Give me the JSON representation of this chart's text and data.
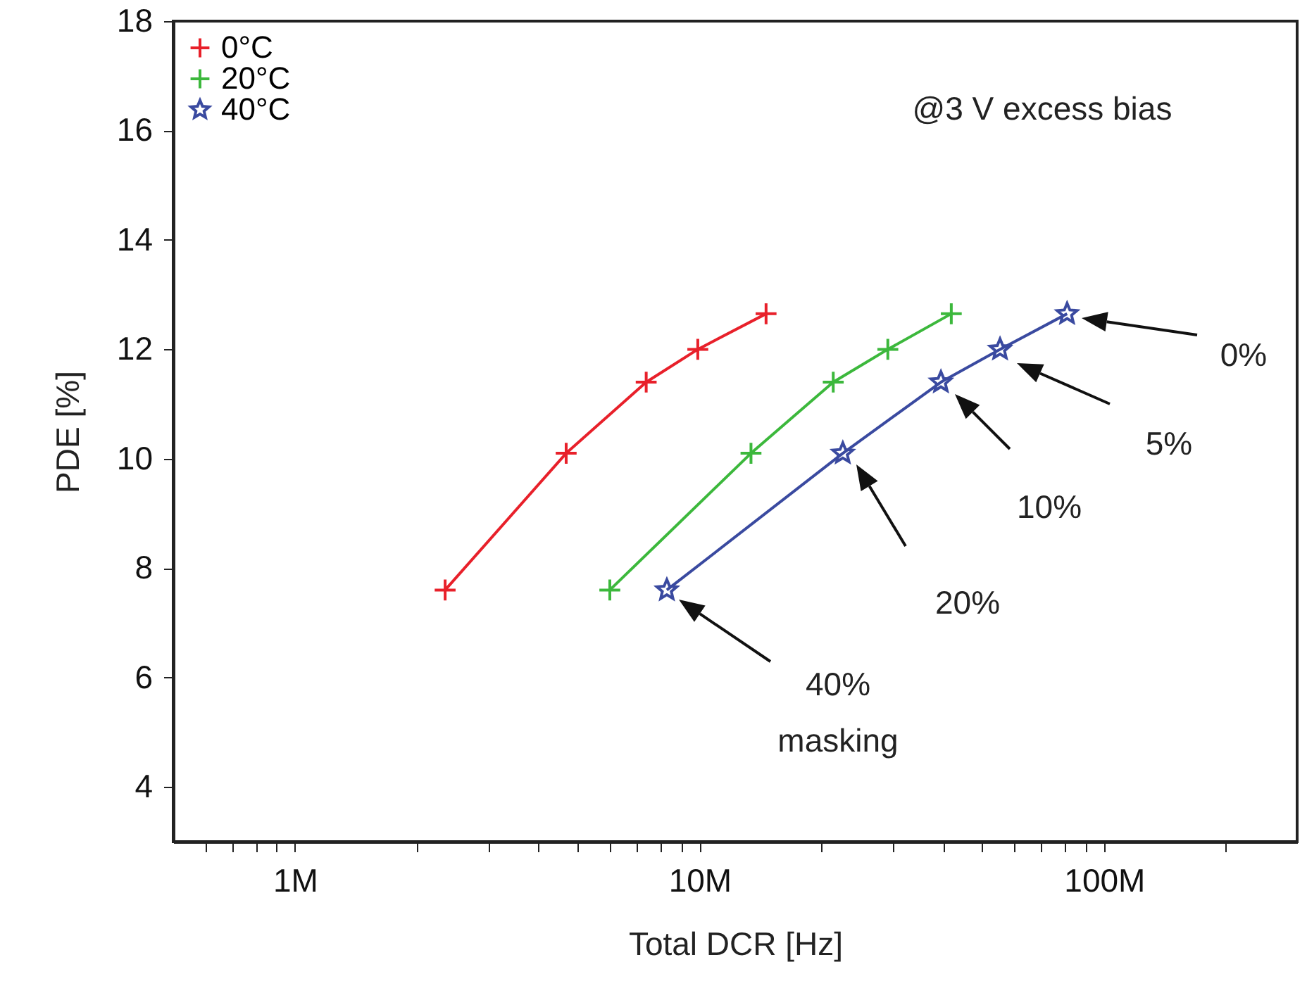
{
  "chart_data": {
    "type": "line",
    "xlabel": "Total DCR [Hz]",
    "ylabel": "PDE [%]",
    "log": "x",
    "xlim": [
      500000,
      300000000
    ],
    "xticks": [
      {
        "value": 600000,
        "label": null
      },
      {
        "value": 700000,
        "label": null
      },
      {
        "value": 800000,
        "label": null
      },
      {
        "value": 900000,
        "label": null
      },
      {
        "value": 1000000,
        "label": "1M"
      },
      {
        "value": 2000000,
        "label": null
      },
      {
        "value": 3000000,
        "label": null
      },
      {
        "value": 4000000,
        "label": null
      },
      {
        "value": 5000000,
        "label": null
      },
      {
        "value": 6000000,
        "label": null
      },
      {
        "value": 7000000,
        "label": null
      },
      {
        "value": 8000000,
        "label": null
      },
      {
        "value": 9000000,
        "label": null
      },
      {
        "value": 10000000,
        "label": "10M"
      },
      {
        "value": 20000000,
        "label": null
      },
      {
        "value": 30000000,
        "label": null
      },
      {
        "value": 40000000,
        "label": null
      },
      {
        "value": 50000000,
        "label": null
      },
      {
        "value": 60000000,
        "label": null
      },
      {
        "value": 70000000,
        "label": null
      },
      {
        "value": 80000000,
        "label": null
      },
      {
        "value": 90000000,
        "label": null
      },
      {
        "value": 100000000,
        "label": "100M"
      },
      {
        "value": 200000000,
        "label": null
      }
    ],
    "ylim": [
      3,
      18
    ],
    "yticks": [
      4,
      6,
      8,
      10,
      12,
      14,
      16,
      18
    ],
    "grid": false,
    "legend": "top left",
    "series": [
      {
        "name": "0°C",
        "color": "#e8202a",
        "marker": "cross",
        "x": [
          2350000,
          4680000,
          7380000,
          9900000,
          14600000
        ],
        "values": [
          7.6,
          10.1,
          11.4,
          12.0,
          12.65
        ]
      },
      {
        "name": "20°C",
        "color": "#3cb83c",
        "marker": "cross",
        "x": [
          6000000,
          13400000,
          21400000,
          29200000,
          41900000
        ],
        "values": [
          7.6,
          10.1,
          11.4,
          12.0,
          12.65
        ]
      },
      {
        "name": "40°C",
        "color": "#3a4aa0",
        "marker": "star",
        "x": [
          8300000,
          22600000,
          39500000,
          55300000,
          81000000
        ],
        "values": [
          7.6,
          10.1,
          11.4,
          12.0,
          12.65
        ]
      }
    ],
    "annotations": [
      "@3 V excess bias",
      "0%",
      "5%",
      "10%",
      "20%",
      "40%\nmasking"
    ]
  }
}
